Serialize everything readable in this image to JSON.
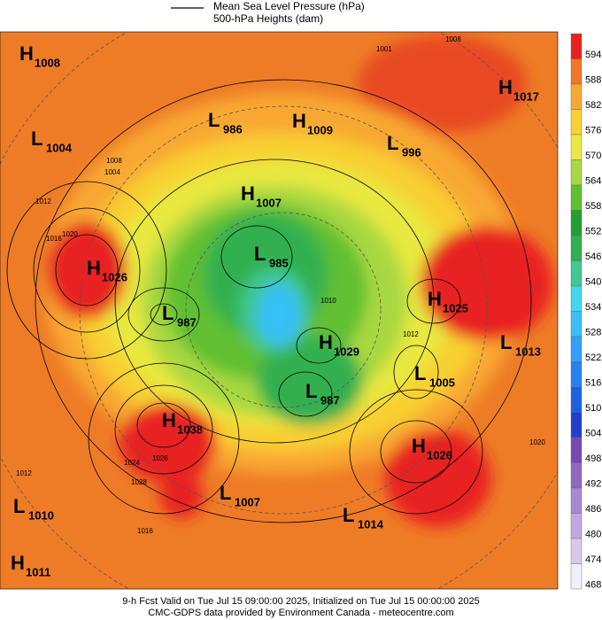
{
  "legend": {
    "lines": [
      "Mean Sea Level Pressure (hPa)",
      "500-hPa Heights (dam)"
    ]
  },
  "centers": [
    {
      "type": "H",
      "pressure": 1008
    },
    {
      "type": "L",
      "pressure": 1004
    },
    {
      "type": "L",
      "pressure": 986
    },
    {
      "type": "H",
      "pressure": 1009
    },
    {
      "type": "L",
      "pressure": 996
    },
    {
      "type": "H",
      "pressure": 1017
    },
    {
      "type": "H",
      "pressure": 1007
    },
    {
      "type": "H",
      "pressure": 1026
    },
    {
      "type": "L",
      "pressure": 985
    },
    {
      "type": "L",
      "pressure": 987
    },
    {
      "type": "H",
      "pressure": 1025
    },
    {
      "type": "L",
      "pressure": 1013
    },
    {
      "type": "H",
      "pressure": 1029
    },
    {
      "type": "L",
      "pressure": 1005
    },
    {
      "type": "L",
      "pressure": 987
    },
    {
      "type": "H",
      "pressure": 1038
    },
    {
      "type": "H",
      "pressure": 1026
    },
    {
      "type": "L",
      "pressure": 1007
    },
    {
      "type": "L",
      "pressure": 1010
    },
    {
      "type": "L",
      "pressure": 1014
    },
    {
      "type": "H",
      "pressure": 1011
    }
  ],
  "isobar_labels": [
    1020,
    1016,
    1012,
    1004,
    1008,
    1001,
    1008,
    1024,
    1028,
    1026,
    1016,
    1012,
    1020,
    1012,
    1010
  ],
  "colorbar": {
    "levels": [
      594,
      588,
      582,
      576,
      570,
      564,
      558,
      552,
      546,
      540,
      534,
      528,
      522,
      516,
      510,
      504,
      498,
      492,
      486,
      480,
      474,
      468
    ],
    "colors": [
      "#e82020",
      "#f07828",
      "#f8a830",
      "#f8d030",
      "#e8e840",
      "#a8d840",
      "#60c030",
      "#20a030",
      "#30b050",
      "#40c890",
      "#40d8f0",
      "#38c0f8",
      "#30a0f8",
      "#2880f0",
      "#2060e0",
      "#2040d0",
      "#7848b4",
      "#9068c4",
      "#a888d4",
      "#c0a8e0",
      "#d8c8ec",
      "#f0eef8"
    ]
  },
  "footer": [
    "9-h Fcst Valid on Tue Jul 15 09:00:00 2025, Initialized on Tue Jul 15 00:00:00 2025",
    "CMC-GDPS data provided by Environment Canada - meteocentre.com"
  ]
}
